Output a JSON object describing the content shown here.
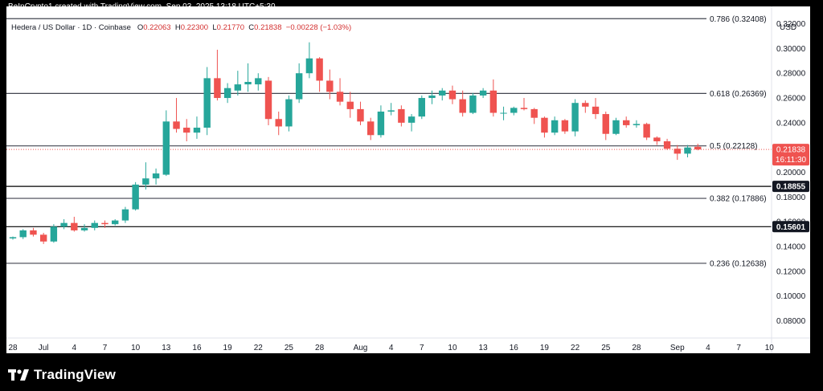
{
  "header": {
    "credit": "BeInCrypto1 created with TradingView.com, Sep 03, 2025 13:18 UTC+5:30"
  },
  "legend": {
    "symbol": "Hedera / US Dollar · 1D · Coinbase",
    "o_label": "O",
    "o_value": "0.22063",
    "h_label": "H",
    "h_value": "0.22300",
    "l_label": "L",
    "l_value": "0.21770",
    "c_label": "C",
    "c_value": "0.21838",
    "change": "−0.00228 (−1.03%)"
  },
  "axis": {
    "currency": "USD"
  },
  "brand": {
    "name": "TradingView"
  },
  "colors": {
    "up": "#26a69a",
    "down": "#ef5350",
    "level": "#434651",
    "bg": "#ffffff",
    "text": "#131722"
  },
  "chart_data": {
    "type": "candlestick",
    "ylim": [
      0.066,
      0.334
    ],
    "y_ticks": [
      "0.32000",
      "0.30000",
      "0.28000",
      "0.26000",
      "0.24000",
      "0.22000",
      "0.20000",
      "0.18000",
      "0.16000",
      "0.14000",
      "0.12000",
      "0.10000",
      "0.08000"
    ],
    "x_labels": [
      {
        "label": "28",
        "day": 0
      },
      {
        "label": "Jul",
        "day": 3
      },
      {
        "label": "4",
        "day": 6
      },
      {
        "label": "7",
        "day": 9
      },
      {
        "label": "10",
        "day": 12
      },
      {
        "label": "13",
        "day": 15
      },
      {
        "label": "16",
        "day": 18
      },
      {
        "label": "19",
        "day": 21
      },
      {
        "label": "22",
        "day": 24
      },
      {
        "label": "25",
        "day": 27
      },
      {
        "label": "28",
        "day": 30
      },
      {
        "label": "Aug",
        "day": 34
      },
      {
        "label": "4",
        "day": 37
      },
      {
        "label": "7",
        "day": 40
      },
      {
        "label": "10",
        "day": 43
      },
      {
        "label": "13",
        "day": 46
      },
      {
        "label": "16",
        "day": 49
      },
      {
        "label": "19",
        "day": 52
      },
      {
        "label": "22",
        "day": 55
      },
      {
        "label": "25",
        "day": 58
      },
      {
        "label": "28",
        "day": 61
      },
      {
        "label": "Sep",
        "day": 65
      },
      {
        "label": "4",
        "day": 68
      },
      {
        "label": "7",
        "day": 71
      },
      {
        "label": "10",
        "day": 74
      }
    ],
    "candles": [
      {
        "o": 0.1465,
        "h": 0.148,
        "l": 0.1455,
        "c": 0.1475
      },
      {
        "o": 0.1475,
        "h": 0.154,
        "l": 0.146,
        "c": 0.153
      },
      {
        "o": 0.153,
        "h": 0.155,
        "l": 0.148,
        "c": 0.1495
      },
      {
        "o": 0.1495,
        "h": 0.151,
        "l": 0.142,
        "c": 0.144
      },
      {
        "o": 0.144,
        "h": 0.158,
        "l": 0.143,
        "c": 0.156
      },
      {
        "o": 0.156,
        "h": 0.162,
        "l": 0.154,
        "c": 0.159
      },
      {
        "o": 0.159,
        "h": 0.164,
        "l": 0.152,
        "c": 0.153
      },
      {
        "o": 0.153,
        "h": 0.158,
        "l": 0.152,
        "c": 0.155
      },
      {
        "o": 0.155,
        "h": 0.161,
        "l": 0.153,
        "c": 0.159
      },
      {
        "o": 0.159,
        "h": 0.161,
        "l": 0.155,
        "c": 0.158
      },
      {
        "o": 0.158,
        "h": 0.162,
        "l": 0.157,
        "c": 0.161
      },
      {
        "o": 0.161,
        "h": 0.172,
        "l": 0.159,
        "c": 0.17
      },
      {
        "o": 0.17,
        "h": 0.192,
        "l": 0.169,
        "c": 0.19
      },
      {
        "o": 0.19,
        "h": 0.208,
        "l": 0.186,
        "c": 0.195
      },
      {
        "o": 0.195,
        "h": 0.203,
        "l": 0.19,
        "c": 0.199
      },
      {
        "o": 0.198,
        "h": 0.25,
        "l": 0.197,
        "c": 0.241
      },
      {
        "o": 0.241,
        "h": 0.26,
        "l": 0.232,
        "c": 0.235
      },
      {
        "o": 0.236,
        "h": 0.243,
        "l": 0.225,
        "c": 0.232
      },
      {
        "o": 0.232,
        "h": 0.245,
        "l": 0.227,
        "c": 0.236
      },
      {
        "o": 0.236,
        "h": 0.285,
        "l": 0.23,
        "c": 0.276
      },
      {
        "o": 0.276,
        "h": 0.299,
        "l": 0.258,
        "c": 0.26
      },
      {
        "o": 0.26,
        "h": 0.272,
        "l": 0.256,
        "c": 0.268
      },
      {
        "o": 0.266,
        "h": 0.282,
        "l": 0.262,
        "c": 0.271
      },
      {
        "o": 0.271,
        "h": 0.288,
        "l": 0.265,
        "c": 0.273
      },
      {
        "o": 0.271,
        "h": 0.28,
        "l": 0.266,
        "c": 0.276
      },
      {
        "o": 0.274,
        "h": 0.277,
        "l": 0.238,
        "c": 0.243
      },
      {
        "o": 0.243,
        "h": 0.249,
        "l": 0.23,
        "c": 0.237
      },
      {
        "o": 0.237,
        "h": 0.262,
        "l": 0.233,
        "c": 0.259
      },
      {
        "o": 0.259,
        "h": 0.288,
        "l": 0.256,
        "c": 0.28
      },
      {
        "o": 0.28,
        "h": 0.305,
        "l": 0.276,
        "c": 0.292
      },
      {
        "o": 0.292,
        "h": 0.293,
        "l": 0.265,
        "c": 0.274
      },
      {
        "o": 0.274,
        "h": 0.283,
        "l": 0.259,
        "c": 0.265
      },
      {
        "o": 0.265,
        "h": 0.276,
        "l": 0.254,
        "c": 0.257
      },
      {
        "o": 0.257,
        "h": 0.265,
        "l": 0.244,
        "c": 0.251
      },
      {
        "o": 0.251,
        "h": 0.257,
        "l": 0.238,
        "c": 0.241
      },
      {
        "o": 0.241,
        "h": 0.244,
        "l": 0.226,
        "c": 0.23
      },
      {
        "o": 0.23,
        "h": 0.254,
        "l": 0.228,
        "c": 0.249
      },
      {
        "o": 0.249,
        "h": 0.256,
        "l": 0.246,
        "c": 0.25
      },
      {
        "o": 0.251,
        "h": 0.254,
        "l": 0.237,
        "c": 0.24
      },
      {
        "o": 0.24,
        "h": 0.247,
        "l": 0.233,
        "c": 0.245
      },
      {
        "o": 0.245,
        "h": 0.262,
        "l": 0.243,
        "c": 0.26
      },
      {
        "o": 0.26,
        "h": 0.266,
        "l": 0.255,
        "c": 0.262
      },
      {
        "o": 0.262,
        "h": 0.268,
        "l": 0.258,
        "c": 0.266
      },
      {
        "o": 0.266,
        "h": 0.27,
        "l": 0.255,
        "c": 0.259
      },
      {
        "o": 0.259,
        "h": 0.266,
        "l": 0.245,
        "c": 0.248
      },
      {
        "o": 0.248,
        "h": 0.264,
        "l": 0.247,
        "c": 0.262
      },
      {
        "o": 0.262,
        "h": 0.268,
        "l": 0.26,
        "c": 0.266
      },
      {
        "o": 0.266,
        "h": 0.275,
        "l": 0.245,
        "c": 0.248
      },
      {
        "o": 0.248,
        "h": 0.253,
        "l": 0.242,
        "c": 0.248
      },
      {
        "o": 0.248,
        "h": 0.253,
        "l": 0.246,
        "c": 0.252
      },
      {
        "o": 0.252,
        "h": 0.26,
        "l": 0.25,
        "c": 0.251
      },
      {
        "o": 0.251,
        "h": 0.252,
        "l": 0.239,
        "c": 0.244
      },
      {
        "o": 0.244,
        "h": 0.245,
        "l": 0.228,
        "c": 0.232
      },
      {
        "o": 0.232,
        "h": 0.245,
        "l": 0.23,
        "c": 0.242
      },
      {
        "o": 0.242,
        "h": 0.243,
        "l": 0.231,
        "c": 0.233
      },
      {
        "o": 0.233,
        "h": 0.259,
        "l": 0.229,
        "c": 0.256
      },
      {
        "o": 0.256,
        "h": 0.258,
        "l": 0.248,
        "c": 0.253
      },
      {
        "o": 0.253,
        "h": 0.26,
        "l": 0.243,
        "c": 0.247
      },
      {
        "o": 0.247,
        "h": 0.249,
        "l": 0.226,
        "c": 0.231
      },
      {
        "o": 0.231,
        "h": 0.244,
        "l": 0.23,
        "c": 0.242
      },
      {
        "o": 0.242,
        "h": 0.245,
        "l": 0.236,
        "c": 0.238
      },
      {
        "o": 0.238,
        "h": 0.242,
        "l": 0.236,
        "c": 0.239
      },
      {
        "o": 0.239,
        "h": 0.24,
        "l": 0.226,
        "c": 0.228
      },
      {
        "o": 0.228,
        "h": 0.229,
        "l": 0.222,
        "c": 0.225
      },
      {
        "o": 0.225,
        "h": 0.227,
        "l": 0.218,
        "c": 0.219
      },
      {
        "o": 0.219,
        "h": 0.222,
        "l": 0.21,
        "c": 0.215
      },
      {
        "o": 0.215,
        "h": 0.222,
        "l": 0.212,
        "c": 0.22
      },
      {
        "o": 0.2206,
        "h": 0.223,
        "l": 0.2177,
        "c": 0.2184
      }
    ],
    "fib_levels": [
      {
        "label": "0.786 (0.32408)",
        "value": 0.32408
      },
      {
        "label": "0.618 (0.26369)",
        "value": 0.26369
      },
      {
        "label": "0.5 (0.22128)",
        "value": 0.22128
      },
      {
        "label": "0.382 (0.17886)",
        "value": 0.17886
      },
      {
        "label": "0.236 (0.12638)",
        "value": 0.12638
      }
    ],
    "price_lines": [
      {
        "label": "0.18855",
        "value": 0.18855
      },
      {
        "label": "0.15601",
        "value": 0.15601
      }
    ],
    "current_price": {
      "label": "0.21838",
      "countdown": "16:11:30",
      "value": 0.21838
    }
  }
}
